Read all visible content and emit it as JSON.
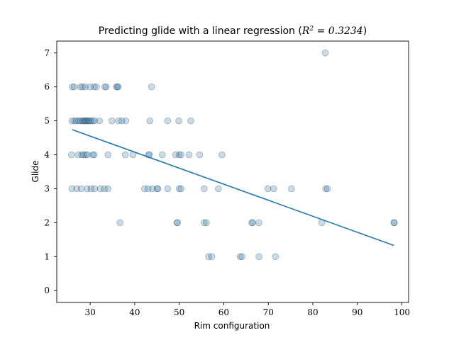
{
  "chart_data": {
    "type": "scatter",
    "title": {
      "prefix": "Predicting glide with a linear regression (",
      "r_symbol": "R",
      "r_exponent": "2",
      "equals_value": " = 0.3234",
      "suffix": ")"
    },
    "xlabel": "Rim configuration",
    "ylabel": "Glide",
    "xlim": [
      22.5,
      101.5
    ],
    "ylim": [
      -0.35,
      7.35
    ],
    "x_ticks": [
      30,
      40,
      50,
      60,
      70,
      80,
      90,
      100
    ],
    "y_ticks": [
      0,
      1,
      2,
      3,
      4,
      5,
      6,
      7
    ],
    "grid": false,
    "colors": {
      "points": "#1f77b4",
      "regression_line": "#1f77b4",
      "axes": "#000000"
    },
    "regression_line": {
      "x": [
        26,
        98.2
      ],
      "y": [
        4.74,
        1.33
      ]
    },
    "points": [
      {
        "x": 82.8,
        "y": 7
      },
      {
        "x": 26.0,
        "y": 6
      },
      {
        "x": 26.4,
        "y": 6
      },
      {
        "x": 27.8,
        "y": 6
      },
      {
        "x": 28.3,
        "y": 6
      },
      {
        "x": 28.9,
        "y": 6
      },
      {
        "x": 30.0,
        "y": 6
      },
      {
        "x": 30.9,
        "y": 6
      },
      {
        "x": 31.4,
        "y": 6
      },
      {
        "x": 33.3,
        "y": 6
      },
      {
        "x": 33.6,
        "y": 6
      },
      {
        "x": 35.9,
        "y": 6
      },
      {
        "x": 36.1,
        "y": 6
      },
      {
        "x": 36.3,
        "y": 6
      },
      {
        "x": 43.8,
        "y": 6
      },
      {
        "x": 25.9,
        "y": 5
      },
      {
        "x": 26.5,
        "y": 5
      },
      {
        "x": 26.9,
        "y": 5
      },
      {
        "x": 27.4,
        "y": 5
      },
      {
        "x": 27.8,
        "y": 5
      },
      {
        "x": 28.2,
        "y": 5
      },
      {
        "x": 28.5,
        "y": 5
      },
      {
        "x": 28.8,
        "y": 5
      },
      {
        "x": 29.0,
        "y": 5
      },
      {
        "x": 29.3,
        "y": 5
      },
      {
        "x": 29.6,
        "y": 5
      },
      {
        "x": 29.8,
        "y": 5
      },
      {
        "x": 30.2,
        "y": 5
      },
      {
        "x": 30.6,
        "y": 5
      },
      {
        "x": 31.0,
        "y": 5
      },
      {
        "x": 32.1,
        "y": 5
      },
      {
        "x": 34.9,
        "y": 5
      },
      {
        "x": 36.4,
        "y": 5
      },
      {
        "x": 37.1,
        "y": 5
      },
      {
        "x": 38.0,
        "y": 5
      },
      {
        "x": 43.4,
        "y": 5
      },
      {
        "x": 47.4,
        "y": 5
      },
      {
        "x": 49.9,
        "y": 5
      },
      {
        "x": 52.6,
        "y": 5
      },
      {
        "x": 25.8,
        "y": 4
      },
      {
        "x": 27.3,
        "y": 4
      },
      {
        "x": 28.1,
        "y": 4
      },
      {
        "x": 28.5,
        "y": 4
      },
      {
        "x": 29.0,
        "y": 4
      },
      {
        "x": 29.4,
        "y": 4
      },
      {
        "x": 30.6,
        "y": 4
      },
      {
        "x": 30.9,
        "y": 4
      },
      {
        "x": 34.0,
        "y": 4
      },
      {
        "x": 37.9,
        "y": 4
      },
      {
        "x": 39.6,
        "y": 4
      },
      {
        "x": 43.1,
        "y": 4
      },
      {
        "x": 43.3,
        "y": 4
      },
      {
        "x": 46.2,
        "y": 4
      },
      {
        "x": 49.2,
        "y": 4
      },
      {
        "x": 50.0,
        "y": 4
      },
      {
        "x": 50.4,
        "y": 4
      },
      {
        "x": 52.2,
        "y": 4
      },
      {
        "x": 54.6,
        "y": 4
      },
      {
        "x": 59.6,
        "y": 4
      },
      {
        "x": 25.9,
        "y": 3
      },
      {
        "x": 27.0,
        "y": 3
      },
      {
        "x": 28.0,
        "y": 3
      },
      {
        "x": 29.3,
        "y": 3
      },
      {
        "x": 30.2,
        "y": 3
      },
      {
        "x": 31.0,
        "y": 3
      },
      {
        "x": 32.3,
        "y": 3
      },
      {
        "x": 33.2,
        "y": 3
      },
      {
        "x": 34.0,
        "y": 3
      },
      {
        "x": 42.2,
        "y": 3
      },
      {
        "x": 43.0,
        "y": 3
      },
      {
        "x": 44.0,
        "y": 3
      },
      {
        "x": 45.0,
        "y": 3
      },
      {
        "x": 45.2,
        "y": 3
      },
      {
        "x": 47.4,
        "y": 3
      },
      {
        "x": 50.0,
        "y": 3
      },
      {
        "x": 50.4,
        "y": 3
      },
      {
        "x": 55.6,
        "y": 3
      },
      {
        "x": 58.8,
        "y": 3
      },
      {
        "x": 69.9,
        "y": 3
      },
      {
        "x": 71.2,
        "y": 3
      },
      {
        "x": 75.2,
        "y": 3
      },
      {
        "x": 82.9,
        "y": 3
      },
      {
        "x": 83.3,
        "y": 3
      },
      {
        "x": 36.7,
        "y": 2
      },
      {
        "x": 49.5,
        "y": 2
      },
      {
        "x": 49.6,
        "y": 2
      },
      {
        "x": 55.6,
        "y": 2
      },
      {
        "x": 56.1,
        "y": 2
      },
      {
        "x": 66.3,
        "y": 2
      },
      {
        "x": 66.5,
        "y": 2
      },
      {
        "x": 67.9,
        "y": 2
      },
      {
        "x": 82.0,
        "y": 2
      },
      {
        "x": 98.2,
        "y": 2
      },
      {
        "x": 98.3,
        "y": 2
      },
      {
        "x": 56.6,
        "y": 1
      },
      {
        "x": 57.3,
        "y": 1
      },
      {
        "x": 63.7,
        "y": 1
      },
      {
        "x": 64.1,
        "y": 1
      },
      {
        "x": 67.9,
        "y": 1
      },
      {
        "x": 71.6,
        "y": 1
      }
    ]
  }
}
